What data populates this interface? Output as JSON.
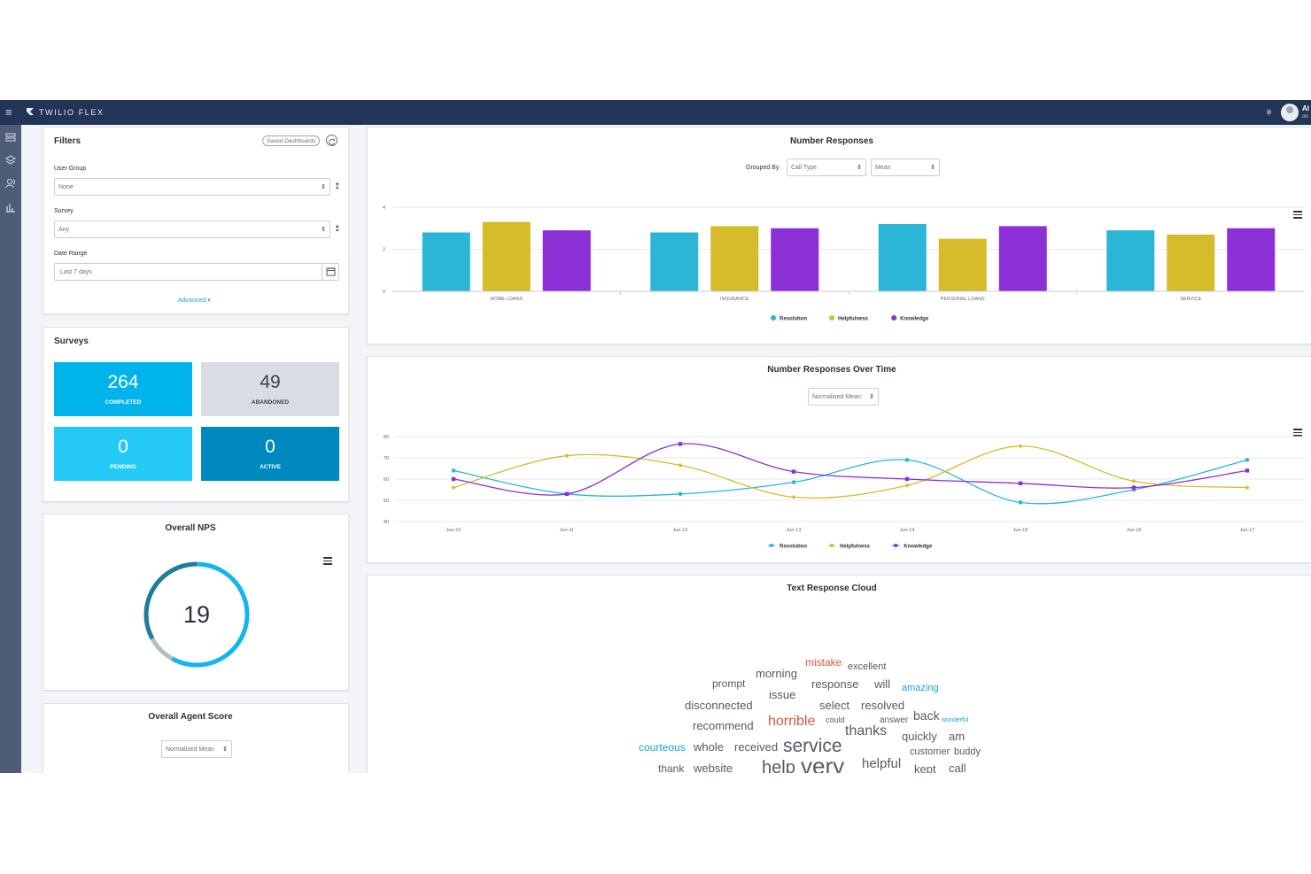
{
  "app": {
    "brand": "TWILIO FLEX",
    "user_name": "Al",
    "user_status": "on"
  },
  "filters": {
    "title": "Filters",
    "saved_dashboards": "Saved Dashboards",
    "user_group_label": "User Group",
    "user_group_value": "None",
    "survey_label": "Survey",
    "survey_value": "Any",
    "date_range_label": "Date Range",
    "date_range_value": "Last 7 days",
    "advanced": "Advanced ▾"
  },
  "surveys": {
    "title": "Surveys",
    "tiles": [
      {
        "value": "264",
        "label": "COMPLETED",
        "bg": "#00b4eb",
        "color": "#ffffff"
      },
      {
        "value": "49",
        "label": "ABANDONED",
        "bg": "#d9dde3",
        "color": "#3a3f4b"
      },
      {
        "value": "0",
        "label": "PENDING",
        "bg": "#24c9f6",
        "color": "#ffffff"
      },
      {
        "value": "0",
        "label": "ACTIVE",
        "bg": "#0089bf",
        "color": "#ffffff"
      }
    ]
  },
  "nps": {
    "title": "Overall NPS",
    "value": "19",
    "gauge": {
      "cyan_fraction": 0.58,
      "gray_fraction": 0.09,
      "teal_fraction": 0.33
    }
  },
  "agent_score": {
    "title": "Overall Agent Score",
    "select_value": "Normalised Mean"
  },
  "number_responses": {
    "title": "Number Responses",
    "grouped_by_label": "Grouped By",
    "group_value": "Call Type",
    "agg_value": "Mean"
  },
  "responses_over_time": {
    "title": "Number Responses Over Time",
    "select_value": "Normalised Mean"
  },
  "word_cloud": {
    "title": "Text Response Cloud",
    "words": [
      {
        "text": "mistake",
        "color": "#e0533f",
        "size": 12
      },
      {
        "text": "excellent",
        "color": "#555b66",
        "size": 11
      },
      {
        "text": "morning",
        "color": "#555b66",
        "size": 13
      },
      {
        "text": "prompt",
        "color": "#555b66",
        "size": 12
      },
      {
        "text": "response",
        "color": "#555b66",
        "size": 13
      },
      {
        "text": "will",
        "color": "#555b66",
        "size": 13
      },
      {
        "text": "amazing",
        "color": "#17a2d8",
        "size": 11
      },
      {
        "text": "issue",
        "color": "#555b66",
        "size": 13
      },
      {
        "text": "disconnected",
        "color": "#555b66",
        "size": 13
      },
      {
        "text": "select",
        "color": "#555b66",
        "size": 13
      },
      {
        "text": "resolved",
        "color": "#555b66",
        "size": 13
      },
      {
        "text": "back",
        "color": "#555b66",
        "size": 14
      },
      {
        "text": "wonderful",
        "color": "#17a2d8",
        "size": 7
      },
      {
        "text": "recommend",
        "color": "#555b66",
        "size": 13
      },
      {
        "text": "horrible",
        "color": "#e0533f",
        "size": 16
      },
      {
        "text": "could",
        "color": "#555b66",
        "size": 9
      },
      {
        "text": "answer",
        "color": "#555b66",
        "size": 10
      },
      {
        "text": "thanks",
        "color": "#555b66",
        "size": 16
      },
      {
        "text": "quickly",
        "color": "#555b66",
        "size": 13
      },
      {
        "text": "am",
        "color": "#555b66",
        "size": 13
      },
      {
        "text": "courteous",
        "color": "#17a2d8",
        "size": 12
      },
      {
        "text": "whole",
        "color": "#555b66",
        "size": 13
      },
      {
        "text": "received",
        "color": "#555b66",
        "size": 13
      },
      {
        "text": "service",
        "color": "#555b66",
        "size": 21
      },
      {
        "text": "customer",
        "color": "#555b66",
        "size": 11
      },
      {
        "text": "buddy",
        "color": "#555b66",
        "size": 11
      },
      {
        "text": "thank",
        "color": "#555b66",
        "size": 12
      },
      {
        "text": "website",
        "color": "#555b66",
        "size": 13
      },
      {
        "text": "help",
        "color": "#555b66",
        "size": 20
      },
      {
        "text": "very",
        "color": "#555b66",
        "size": 26
      },
      {
        "text": "helpful",
        "color": "#555b66",
        "size": 15
      },
      {
        "text": "kept",
        "color": "#555b66",
        "size": 13
      },
      {
        "text": "call",
        "color": "#555b66",
        "size": 13
      }
    ]
  },
  "chart_data": [
    {
      "type": "bar",
      "title": "Number Responses",
      "categories": [
        "HOME LOANS",
        "INSURANCE",
        "PERSONAL LOANS",
        "SERVICE"
      ],
      "series": [
        {
          "name": "Resolution",
          "values": [
            2.8,
            2.8,
            3.2,
            2.9
          ],
          "color": "#2bb5d6"
        },
        {
          "name": "Helpfulness",
          "values": [
            3.3,
            3.1,
            2.5,
            2.7
          ],
          "color": "#d6bc2a"
        },
        {
          "name": "Knowledge",
          "values": [
            2.9,
            3.0,
            3.1,
            3.0
          ],
          "color": "#8c2fd6"
        }
      ],
      "yticks": [
        0,
        2,
        4
      ],
      "ylim": [
        0,
        4
      ],
      "grid": true,
      "legend": "bottom"
    },
    {
      "type": "line",
      "title": "Number Responses Over Time",
      "x": [
        "Jun-10",
        "Jun-11",
        "Jun-12",
        "Jun-13",
        "Jun-14",
        "Jun-15",
        "Jun-16",
        "Jun-17"
      ],
      "series": [
        {
          "name": "Resolution",
          "values": [
            64,
            53,
            53,
            58.5,
            69,
            49,
            55,
            69
          ],
          "color": "#2bb5d6",
          "marker": "circle"
        },
        {
          "name": "Helpfulness",
          "values": [
            56,
            71,
            66.5,
            51.5,
            57,
            75.5,
            59,
            56
          ],
          "color": "#d6bc2a",
          "marker": "diamond"
        },
        {
          "name": "Knowledge",
          "values": [
            60,
            53,
            76.5,
            63.5,
            60,
            58,
            56,
            64
          ],
          "color": "#8c2fd6",
          "marker": "square"
        }
      ],
      "yticks": [
        40,
        50,
        60,
        70,
        80
      ],
      "ylim": [
        40,
        80
      ],
      "grid": true,
      "legend": "bottom"
    }
  ]
}
